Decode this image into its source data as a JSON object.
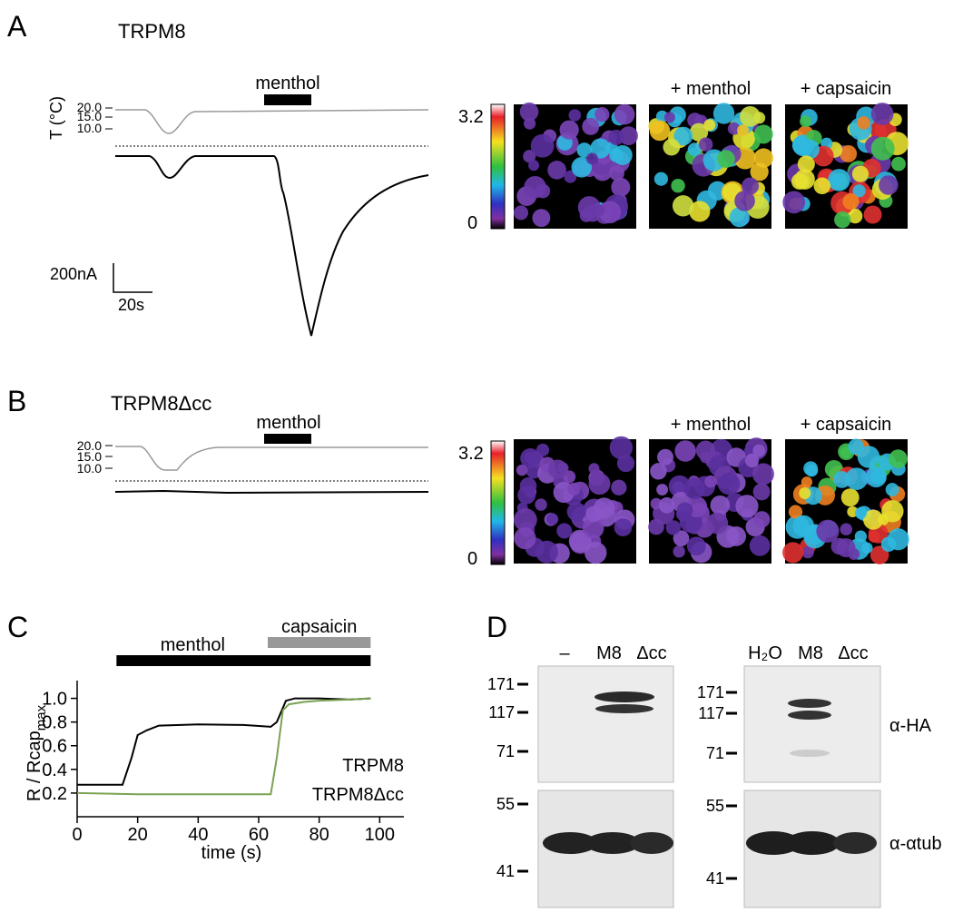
{
  "panel_labels": [
    "A",
    "B",
    "C",
    "D"
  ],
  "panel_a": {
    "title": "TRPM8",
    "temp_axis_label": "T (°C)",
    "temp_ticks": [
      "20.0",
      "15.0",
      "10.0"
    ],
    "stimulus": "menthol",
    "scale_current": "200nA",
    "scale_time": "20s",
    "image_labels": [
      "+ menthol",
      "+ capsaicin"
    ],
    "colorbar_ticks": [
      "3.2",
      "0"
    ]
  },
  "panel_b": {
    "title": "TRPM8Δcc",
    "temp_ticks": [
      "20.0",
      "15.0",
      "10.0"
    ],
    "stimulus": "menthol",
    "image_labels": [
      "+ menthol",
      "+ capsaicin"
    ],
    "colorbar_ticks": [
      "3.2",
      "0"
    ]
  },
  "chart_data": {
    "type": "line",
    "xlabel": "time (s)",
    "ylabel": "R / Rcap",
    "ylabel_subscript": "max",
    "xlim": [
      0,
      108
    ],
    "ylim": [
      0,
      1.15
    ],
    "xticks": [
      0,
      20,
      40,
      60,
      80,
      100
    ],
    "yticks": [
      0.2,
      0.4,
      0.6,
      0.8,
      {
        "value": 1,
        "label": "1.0"
      }
    ],
    "legend": "lower right",
    "annotations": [
      {
        "text": "menthol",
        "start": 13,
        "end": 97,
        "color": "#000000"
      },
      {
        "text": "capsaicin",
        "start": 63,
        "end": 97,
        "color": "#999999"
      }
    ],
    "series": [
      {
        "name": "TRPM8",
        "color": "#000000",
        "x": [
          0,
          15,
          18,
          20,
          23,
          27,
          40,
          55,
          64,
          66,
          69,
          72,
          80,
          90,
          97
        ],
        "values": [
          0.27,
          0.27,
          0.5,
          0.69,
          0.73,
          0.77,
          0.78,
          0.775,
          0.76,
          0.8,
          0.98,
          1.0,
          1.0,
          0.99,
          1.0
        ]
      },
      {
        "name": "TRPM8Δcc",
        "color": "#7aa352",
        "x": [
          0,
          20,
          50,
          64,
          66,
          68,
          70,
          75,
          80,
          90,
          97
        ],
        "values": [
          0.2,
          0.19,
          0.19,
          0.19,
          0.5,
          0.9,
          0.95,
          0.97,
          0.98,
          0.99,
          1.0
        ]
      }
    ]
  },
  "panel_d": {
    "lanes_left": [
      "–",
      "M8",
      "Δcc"
    ],
    "lanes_right": [
      "H₂O",
      "M8",
      "Δcc"
    ],
    "mw_top": [
      "171",
      "117",
      "71"
    ],
    "mw_bottom": [
      "55",
      "41"
    ],
    "antibodies": [
      "α-HA",
      "α-αtub"
    ]
  }
}
